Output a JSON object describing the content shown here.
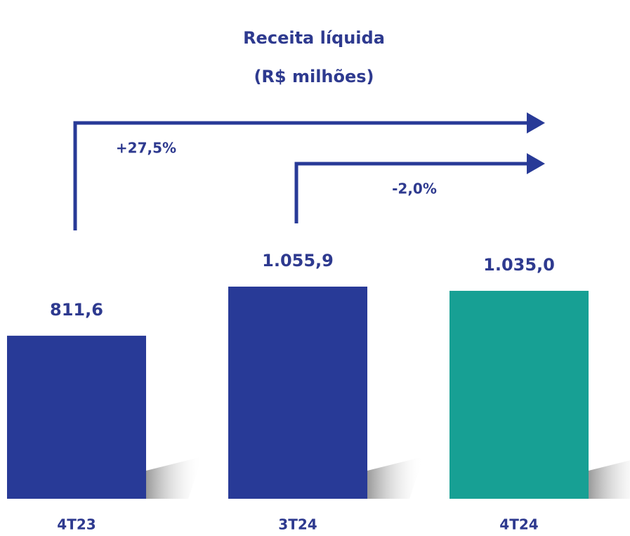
{
  "chart_data": {
    "type": "bar",
    "title": "Receita líquida",
    "subtitle": "(R$ milhões)",
    "categories": [
      "4T23",
      "3T24",
      "4T24"
    ],
    "values": [
      811.6,
      1055.9,
      1035.0
    ],
    "value_labels": [
      "811,6",
      "1.055,9",
      "1.035,0"
    ],
    "colors": [
      "#283a97",
      "#283a97",
      "#17a094"
    ],
    "annotations": [
      "+27,5%",
      "-2,0%"
    ]
  }
}
